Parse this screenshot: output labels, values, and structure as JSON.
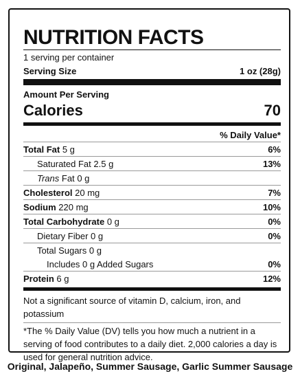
{
  "title": "NUTRITION FACTS",
  "servings": "1 serving per container",
  "serving_size": {
    "label": "Serving Size",
    "value": "1 oz (28g)"
  },
  "amount_per_serving": "Amount Per Serving",
  "calories": {
    "label": "Calories",
    "value": "70"
  },
  "daily_value_header": "% Daily Value*",
  "rows": [
    {
      "name": "Total Fat",
      "amount": "5 g",
      "dv": "6%"
    },
    {
      "name": "Saturated Fat",
      "amount": "2.5 g",
      "dv": "13%"
    },
    {
      "name_italic": "Trans",
      "name": "Fat",
      "amount": "0 g"
    },
    {
      "name": "Cholesterol",
      "amount": "20 mg",
      "dv": "7%"
    },
    {
      "name": "Sodium",
      "amount": "220 mg",
      "dv": "10%"
    },
    {
      "name": "Total Carbohydrate",
      "amount": "0 g",
      "dv": "0%"
    },
    {
      "name": "Dietary Fiber",
      "amount": "0 g",
      "dv": "0%"
    },
    {
      "name": "Total Sugars",
      "amount": "0 g"
    },
    {
      "name": "Includes 0 g Added Sugars",
      "dv": "0%"
    },
    {
      "name": "Protein",
      "amount": "6 g",
      "dv": "12%"
    }
  ],
  "vitamin_note": "Not a significant source of vitamin D, calcium, iron, and potassium",
  "footnote": "*The % Daily Value (DV) tells you how much a nutrient in a serving of food contributes to a daily diet. 2,000 calories a day is used for general nutrition advice.",
  "caption": "Original, Jalapeño, Summer Sausage, Garlic Summer Sausage"
}
